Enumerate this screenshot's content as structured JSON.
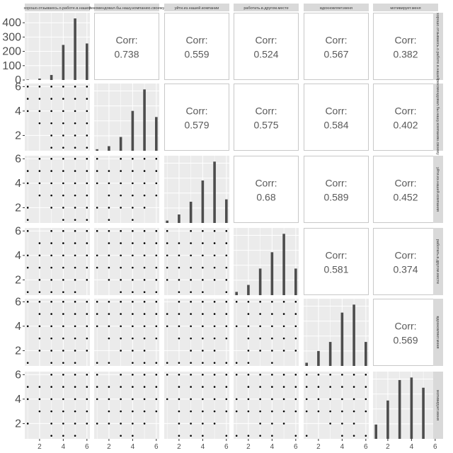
{
  "chart_data": {
    "type": "pairs-matrix",
    "variables": [
      "хорошо.отзываюсь.о.работе.в.нашей",
      "рекомендовал.бы.нашу.компанию.своему",
      "уйти.из.нашей.компании",
      "работать.в.другом.месте",
      "вдохновляет.меня",
      "мотивирует.меня"
    ],
    "x_ticks": [
      2,
      4,
      6
    ],
    "y_ticks": [
      2,
      4,
      6
    ],
    "first_row_y_ticks": [
      0,
      100,
      200,
      300,
      400
    ],
    "value_range": [
      1,
      6
    ],
    "first_hist_ylim": [
      0,
      450
    ],
    "diagonal_counts": [
      [
        3,
        10,
        35,
        245,
        430,
        255
      ],
      [
        5,
        15,
        45,
        130,
        200,
        110
      ],
      [
        5,
        18,
        45,
        90,
        130,
        50
      ],
      [
        8,
        25,
        65,
        105,
        150,
        65
      ],
      [
        6,
        28,
        45,
        100,
        115,
        45
      ],
      [
        28,
        75,
        115,
        120,
        100,
        28
      ]
    ],
    "corr_label": "Corr:",
    "correlations": [
      {
        "row": 0,
        "col": 1,
        "value": "0.738"
      },
      {
        "row": 0,
        "col": 2,
        "value": "0.559"
      },
      {
        "row": 0,
        "col": 3,
        "value": "0.524"
      },
      {
        "row": 0,
        "col": 4,
        "value": "0.567"
      },
      {
        "row": 0,
        "col": 5,
        "value": "0.382"
      },
      {
        "row": 1,
        "col": 2,
        "value": "0.579"
      },
      {
        "row": 1,
        "col": 3,
        "value": "0.575"
      },
      {
        "row": 1,
        "col": 4,
        "value": "0.584"
      },
      {
        "row": 1,
        "col": 5,
        "value": "0.402"
      },
      {
        "row": 2,
        "col": 3,
        "value": "0.68"
      },
      {
        "row": 2,
        "col": 4,
        "value": "0.589"
      },
      {
        "row": 2,
        "col": 5,
        "value": "0.452"
      },
      {
        "row": 3,
        "col": 4,
        "value": "0.581"
      },
      {
        "row": 3,
        "col": 5,
        "value": "0.374"
      },
      {
        "row": 4,
        "col": 5,
        "value": "0.569"
      }
    ],
    "grid": true,
    "colors": {
      "panel_background": "#ebebeb",
      "gridline": "#ffffff",
      "strip_background": "#d9d9d9",
      "bar": "#4d4d4d",
      "point": "#000000",
      "corr_text": "#595959"
    }
  }
}
